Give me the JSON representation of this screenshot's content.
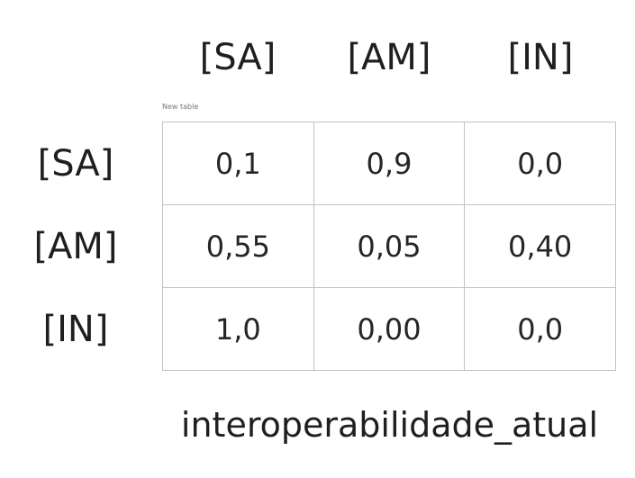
{
  "column_headers": [
    "[SA]",
    "[AM]",
    "[IN]"
  ],
  "row_headers": [
    "[SA]",
    "[AM]",
    "[IN]"
  ],
  "table_caption": "New table",
  "matrix": [
    [
      "0,1",
      "0,9",
      "0,0"
    ],
    [
      "0,55",
      "0,05",
      "0,40"
    ],
    [
      "1,0",
      "0,00",
      "0,0"
    ]
  ],
  "footer_title": "interoperabilidade_atual"
}
